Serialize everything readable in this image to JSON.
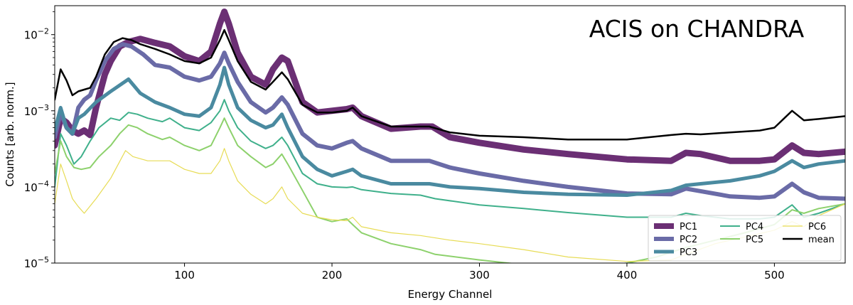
{
  "chart_data": {
    "type": "line",
    "title": "ACIS on CHANDRA",
    "xlabel": "Energy Channel",
    "ylabel": "Counts [arb. norm.]",
    "xscale": "linear",
    "yscale": "log",
    "xlim": [
      12,
      548
    ],
    "ylim": [
      1e-05,
      0.024
    ],
    "xticks": [
      100,
      200,
      300,
      400,
      500
    ],
    "yticks": [
      {
        "value": 0.01,
        "label": "10",
        "exp": "−2"
      },
      {
        "value": 0.001,
        "label": "10",
        "exp": "−3"
      },
      {
        "value": 0.0001,
        "label": "10",
        "exp": "−4"
      },
      {
        "value": 1e-05,
        "label": "10",
        "exp": "−5"
      }
    ],
    "legend_position": "lower-right",
    "series": [
      {
        "name": "PC1",
        "color": "#6b2f74",
        "width": 9,
        "x": [
          12,
          16,
          20,
          24,
          28,
          32,
          36,
          40,
          46,
          50,
          56,
          62,
          70,
          80,
          90,
          100,
          110,
          118,
          124,
          127,
          130,
          136,
          145,
          155,
          160,
          166,
          170,
          180,
          190,
          200,
          210,
          214,
          220,
          240,
          260,
          268,
          280,
          300,
          330,
          360,
          400,
          430,
          440,
          450,
          470,
          490,
          500,
          512,
          520,
          530,
          548
        ],
        "y": [
          0.00035,
          0.0008,
          0.0007,
          0.00055,
          0.0005,
          0.00055,
          0.00048,
          0.0011,
          0.003,
          0.0045,
          0.007,
          0.008,
          0.0088,
          0.0078,
          0.007,
          0.0052,
          0.0045,
          0.006,
          0.014,
          0.02,
          0.014,
          0.0058,
          0.0028,
          0.0022,
          0.0035,
          0.005,
          0.0045,
          0.0013,
          0.00095,
          0.001,
          0.00105,
          0.0011,
          0.00085,
          0.00058,
          0.00062,
          0.00062,
          0.00045,
          0.00038,
          0.00031,
          0.00027,
          0.00023,
          0.00022,
          0.00028,
          0.00027,
          0.00022,
          0.00022,
          0.00023,
          0.00035,
          0.00028,
          0.00027,
          0.00029
        ]
      },
      {
        "name": "PC2",
        "color": "#6a6ba7",
        "width": 6,
        "x": [
          12,
          16,
          20,
          24,
          28,
          32,
          36,
          40,
          46,
          52,
          58,
          64,
          72,
          80,
          90,
          100,
          110,
          118,
          124,
          127,
          130,
          136,
          145,
          155,
          160,
          166,
          170,
          180,
          190,
          200,
          210,
          214,
          220,
          240,
          260,
          266,
          280,
          300,
          330,
          360,
          400,
          430,
          440,
          450,
          470,
          490,
          500,
          512,
          520,
          530,
          548
        ],
        "y": [
          0.00045,
          0.00095,
          0.0006,
          0.0005,
          0.0011,
          0.0014,
          0.0016,
          0.0025,
          0.0045,
          0.0065,
          0.0075,
          0.007,
          0.0055,
          0.004,
          0.0037,
          0.0028,
          0.0025,
          0.0028,
          0.0042,
          0.0058,
          0.0042,
          0.0024,
          0.0013,
          0.00095,
          0.0011,
          0.0015,
          0.0012,
          0.0005,
          0.00035,
          0.00032,
          0.00038,
          0.0004,
          0.00032,
          0.00022,
          0.00022,
          0.00022,
          0.00018,
          0.00015,
          0.00012,
          0.0001,
          8.2e-05,
          8e-05,
          9.5e-05,
          8.8e-05,
          7.5e-05,
          7.2e-05,
          7.5e-05,
          0.00011,
          8.5e-05,
          7.2e-05,
          7e-05
        ]
      },
      {
        "name": "PC3",
        "color": "#4a8aa0",
        "width": 5,
        "x": [
          12,
          16,
          20,
          24,
          28,
          32,
          40,
          50,
          62,
          70,
          80,
          90,
          100,
          110,
          118,
          124,
          127,
          130,
          136,
          145,
          155,
          160,
          166,
          170,
          180,
          190,
          200,
          210,
          214,
          220,
          240,
          260,
          266,
          280,
          300,
          330,
          360,
          400,
          430,
          440,
          450,
          470,
          490,
          500,
          512,
          520,
          530,
          548
        ],
        "y": [
          0.00055,
          0.0011,
          0.0006,
          0.0005,
          0.0008,
          0.0009,
          0.0013,
          0.0018,
          0.0026,
          0.0017,
          0.0013,
          0.0011,
          0.0009,
          0.00085,
          0.0011,
          0.0022,
          0.0037,
          0.0022,
          0.0011,
          0.00075,
          0.0006,
          0.00065,
          0.0009,
          0.0006,
          0.00025,
          0.00017,
          0.00014,
          0.00016,
          0.00017,
          0.00014,
          0.00011,
          0.00011,
          0.00011,
          0.0001,
          9.5e-05,
          8.5e-05,
          8e-05,
          7.8e-05,
          9e-05,
          0.000105,
          0.00011,
          0.00012,
          0.00014,
          0.00016,
          0.00022,
          0.00018,
          0.0002,
          0.00022
        ]
      },
      {
        "name": "PC4",
        "color": "#3fb08b",
        "width": 2,
        "x": [
          12,
          16,
          20,
          25,
          30,
          36,
          42,
          50,
          56,
          62,
          68,
          75,
          85,
          90,
          100,
          110,
          118,
          124,
          127,
          130,
          136,
          145,
          155,
          160,
          166,
          170,
          180,
          190,
          200,
          210,
          214,
          220,
          240,
          260,
          270,
          300,
          330,
          360,
          400,
          430,
          440,
          450,
          470,
          490,
          500,
          512,
          520,
          530,
          548
        ],
        "y": [
          0.0001,
          0.0005,
          0.00035,
          0.0002,
          0.00025,
          0.0004,
          0.0006,
          0.0008,
          0.00075,
          0.00095,
          0.0009,
          0.0008,
          0.00072,
          0.0008,
          0.0006,
          0.00055,
          0.0007,
          0.001,
          0.0014,
          0.001,
          0.0006,
          0.0004,
          0.00032,
          0.00035,
          0.00045,
          0.00035,
          0.00015,
          0.00011,
          0.0001,
          9.8e-05,
          0.0001,
          9.2e-05,
          8.2e-05,
          7.8e-05,
          7e-05,
          5.8e-05,
          5.2e-05,
          4.6e-05,
          4e-05,
          4e-05,
          4.5e-05,
          4.2e-05,
          3.8e-05,
          3.8e-05,
          4e-05,
          5.8e-05,
          4e-05,
          4.5e-05,
          6e-05
        ]
      },
      {
        "name": "PC5",
        "color": "#8dd16c",
        "width": 2,
        "x": [
          12,
          16,
          20,
          25,
          30,
          36,
          42,
          50,
          56,
          62,
          68,
          75,
          85,
          90,
          100,
          110,
          118,
          124,
          127,
          130,
          136,
          145,
          155,
          160,
          166,
          170,
          180,
          190,
          200,
          210,
          214,
          220,
          240,
          260,
          270,
          300,
          330,
          360,
          390,
          400,
          420,
          440,
          460,
          480,
          500,
          512,
          520,
          530,
          548
        ],
        "y": [
          0.00015,
          0.0004,
          0.00025,
          0.00018,
          0.00017,
          0.00018,
          0.00025,
          0.00035,
          0.0005,
          0.00065,
          0.0006,
          0.0005,
          0.00042,
          0.00045,
          0.00035,
          0.0003,
          0.00035,
          0.0006,
          0.0008,
          0.0006,
          0.00035,
          0.00025,
          0.00018,
          0.0002,
          0.00027,
          0.0002,
          9e-05,
          4e-05,
          3.5e-05,
          3.8e-05,
          3.2e-05,
          2.5e-05,
          1.8e-05,
          1.5e-05,
          1.3e-05,
          1.1e-05,
          9.5e-06,
          9e-06,
          9.5e-06,
          1e-05,
          1.2e-05,
          1.6e-05,
          2e-05,
          2.5e-05,
          3.2e-05,
          5e-05,
          4.5e-05,
          5.2e-05,
          6e-05
        ]
      },
      {
        "name": "PC6",
        "color": "#e7dc55",
        "width": 1.2,
        "x": [
          12,
          16,
          20,
          24,
          28,
          32,
          40,
          50,
          60,
          65,
          75,
          85,
          90,
          100,
          110,
          118,
          124,
          127,
          130,
          136,
          145,
          155,
          160,
          166,
          170,
          180,
          190,
          200,
          210,
          214,
          220,
          240,
          260,
          280,
          300,
          330,
          360,
          400,
          430,
          440,
          460,
          480,
          500,
          512,
          520,
          530,
          548
        ],
        "y": [
          6e-05,
          0.0002,
          0.00012,
          7e-05,
          5.5e-05,
          4.5e-05,
          7e-05,
          0.00013,
          0.0003,
          0.00025,
          0.00022,
          0.00022,
          0.00022,
          0.00017,
          0.00015,
          0.00015,
          0.00022,
          0.00032,
          0.00022,
          0.00012,
          8e-05,
          6e-05,
          7e-05,
          0.0001,
          7e-05,
          4.5e-05,
          4e-05,
          3.7e-05,
          3.6e-05,
          4e-05,
          3e-05,
          2.5e-05,
          2.3e-05,
          2e-05,
          1.8e-05,
          1.5e-05,
          1.2e-05,
          1.05e-05,
          1.1e-05,
          1.3e-05,
          1.8e-05,
          2.2e-05,
          2.7e-05,
          3.5e-05,
          3e-05,
          4.2e-05,
          6e-05
        ]
      },
      {
        "name": "mean",
        "color": "#000000",
        "width": 2.5,
        "x": [
          12,
          16,
          20,
          24,
          28,
          32,
          36,
          40,
          46,
          52,
          58,
          64,
          70,
          80,
          90,
          100,
          110,
          118,
          124,
          127,
          130,
          136,
          145,
          155,
          160,
          166,
          170,
          180,
          190,
          200,
          210,
          214,
          220,
          240,
          260,
          266,
          280,
          300,
          330,
          360,
          400,
          430,
          440,
          450,
          470,
          490,
          500,
          512,
          520,
          530,
          548
        ],
        "y": [
          0.0014,
          0.0035,
          0.0025,
          0.0016,
          0.0018,
          0.0019,
          0.002,
          0.0028,
          0.0055,
          0.008,
          0.009,
          0.0085,
          0.0075,
          0.0065,
          0.0055,
          0.0045,
          0.0042,
          0.005,
          0.0085,
          0.0115,
          0.0085,
          0.0045,
          0.0024,
          0.0019,
          0.0024,
          0.0032,
          0.0026,
          0.0012,
          0.00095,
          0.00095,
          0.001,
          0.0011,
          0.00085,
          0.00062,
          0.00062,
          0.00062,
          0.00052,
          0.00047,
          0.00045,
          0.00042,
          0.00042,
          0.00048,
          0.0005,
          0.00049,
          0.00052,
          0.00055,
          0.0006,
          0.001,
          0.00075,
          0.00078,
          0.00085
        ]
      }
    ]
  }
}
